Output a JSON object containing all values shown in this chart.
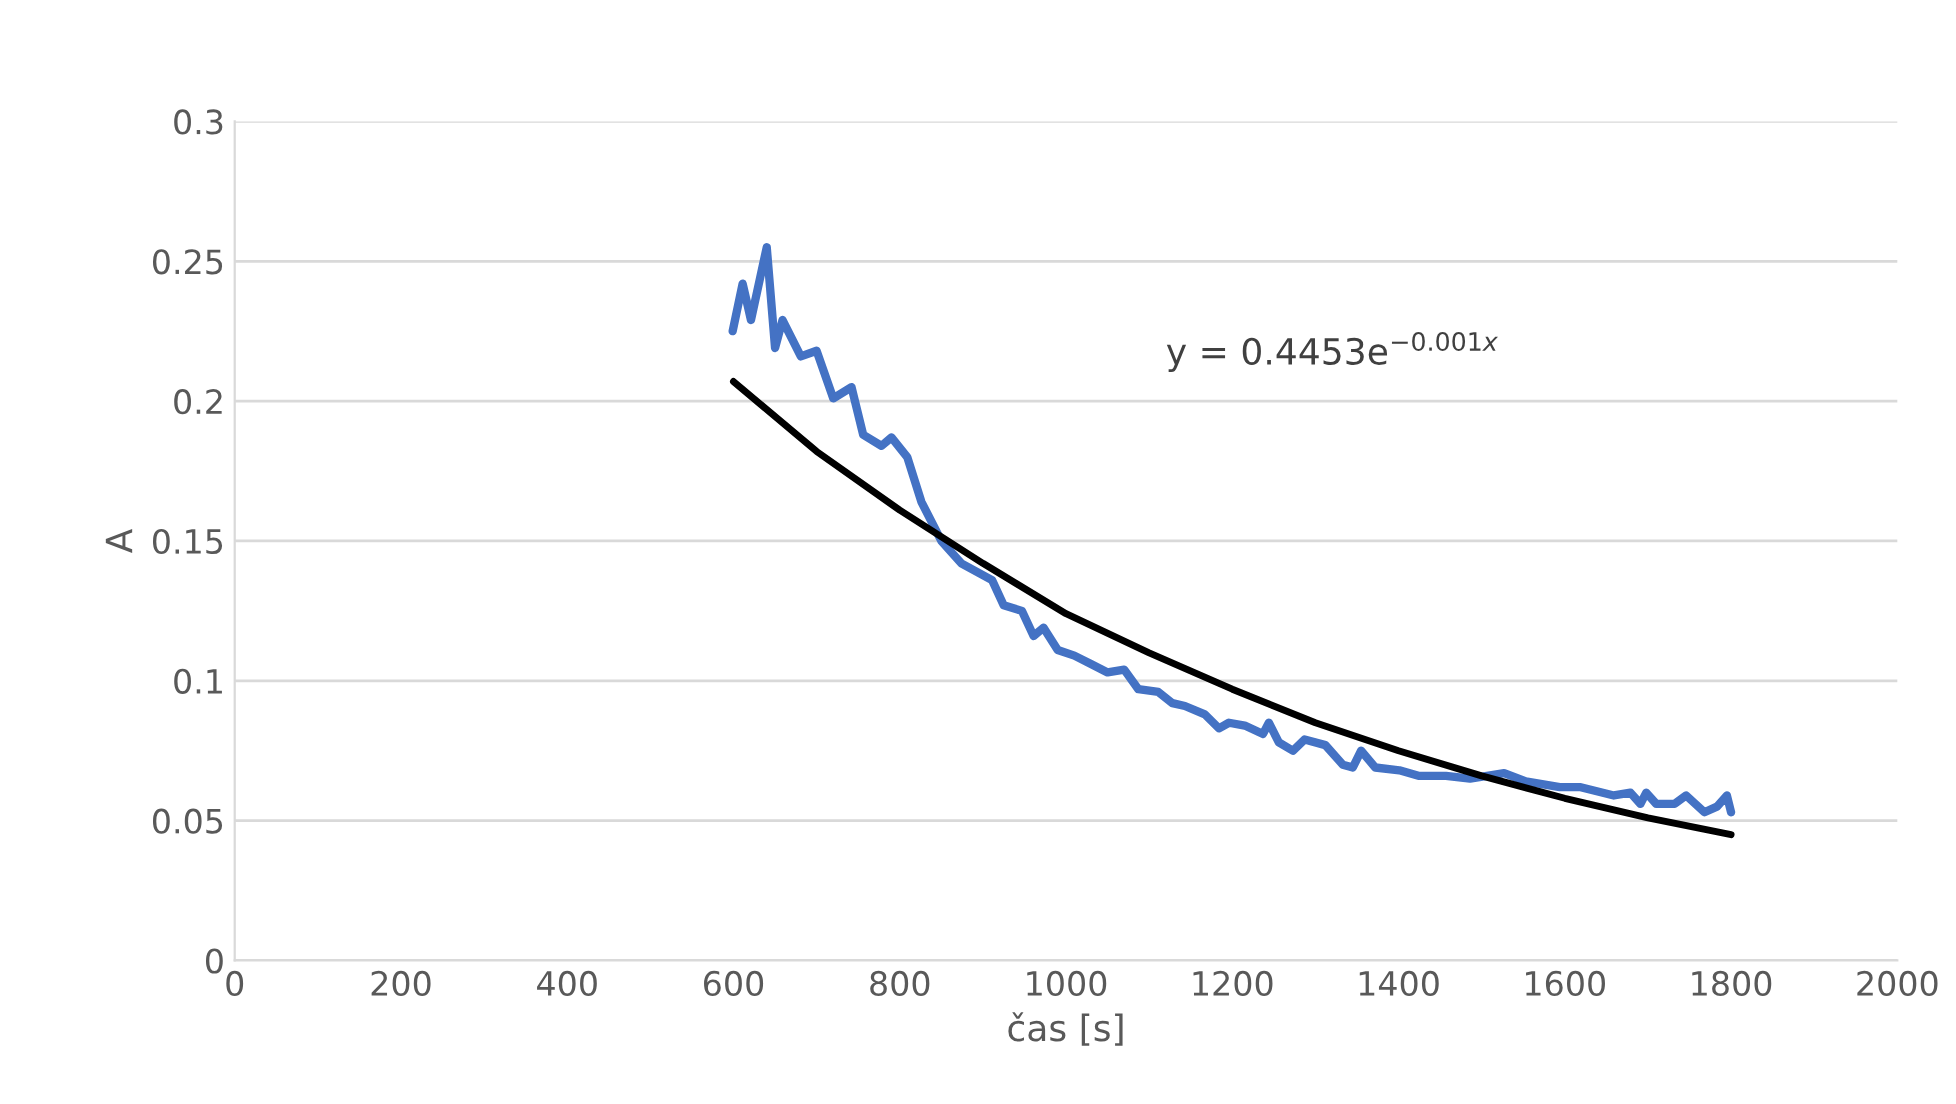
{
  "chart_data": {
    "type": "line",
    "xlabel": "čas [s]",
    "ylabel": "A",
    "annotations": [
      "y = 0.4453e$^{−0.001x}$"
    ],
    "xlim": [
      0,
      2000
    ],
    "xticks": [
      0,
      200,
      400,
      600,
      800,
      1000,
      1200,
      1400,
      1600,
      1800,
      2000
    ],
    "ylim": [
      0,
      0.3
    ],
    "yticks": [
      0,
      0.05,
      0.1,
      0.15,
      0.2,
      0.25,
      0.3
    ],
    "grid": "y",
    "legend": false,
    "marker": "none",
    "line_style": "solid",
    "series": [
      {
        "color": "#4472c4",
        "x": [
          599,
          611,
          621,
          640,
          650,
          659,
          681,
          700,
          720,
          742,
          756,
          778,
          790,
          809,
          826,
          850,
          874,
          911,
          925,
          947,
          961,
          973,
          990,
          1010,
          1030,
          1050,
          1070,
          1087,
          1111,
          1128,
          1143,
          1167,
          1184,
          1196,
          1215,
          1237,
          1244,
          1256,
          1273,
          1287,
          1312,
          1333,
          1345,
          1355,
          1372,
          1401,
          1425,
          1457,
          1486,
          1527,
          1553,
          1594,
          1618,
          1659,
          1679,
          1691,
          1698,
          1710,
          1732,
          1746,
          1768,
          1783,
          1795,
          1800
        ],
        "values": [
          0.225,
          0.242,
          0.229,
          0.255,
          0.219,
          0.229,
          0.216,
          0.218,
          0.201,
          0.205,
          0.188,
          0.184,
          0.187,
          0.18,
          0.164,
          0.15,
          0.142,
          0.136,
          0.127,
          0.125,
          0.116,
          0.119,
          0.111,
          0.109,
          0.106,
          0.103,
          0.104,
          0.097,
          0.096,
          0.092,
          0.091,
          0.088,
          0.083,
          0.085,
          0.084,
          0.081,
          0.085,
          0.078,
          0.075,
          0.079,
          0.077,
          0.07,
          0.069,
          0.075,
          0.069,
          0.068,
          0.066,
          0.066,
          0.065,
          0.067,
          0.064,
          0.062,
          0.062,
          0.059,
          0.06,
          0.056,
          0.06,
          0.056,
          0.056,
          0.059,
          0.053,
          0.055,
          0.059,
          0.053
        ]
      },
      {
        "color": "#000000",
        "x": [
          600,
          700,
          800,
          900,
          1000,
          1100,
          1200,
          1300,
          1400,
          1500,
          1600,
          1700,
          1800
        ],
        "values": [
          0.207,
          0.182,
          0.161,
          0.142,
          0.124,
          0.11,
          0.097,
          0.085,
          0.075,
          0.066,
          0.058,
          0.051,
          0.045
        ]
      }
    ]
  }
}
